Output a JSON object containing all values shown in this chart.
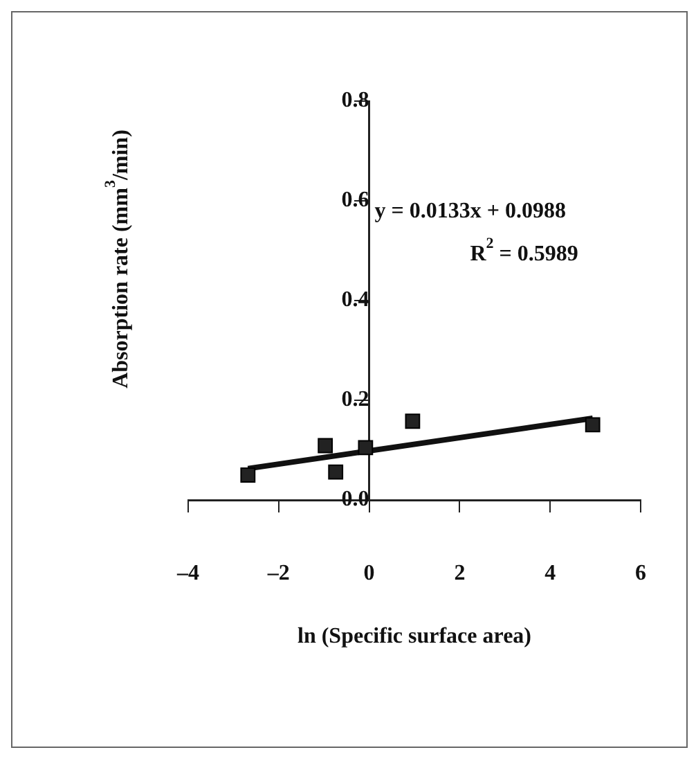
{
  "chart_data": {
    "type": "scatter",
    "xlabel": "ln (Specific surface area)",
    "ylabel": "Absorption rate (mm$^{3}$/min)",
    "xlim": [
      -4,
      6
    ],
    "xticks": [
      {
        "value": -4,
        "label": "–4"
      },
      {
        "value": -2,
        "label": "–2"
      },
      0,
      2,
      4,
      6
    ],
    "ylim": [
      0,
      0.8
    ],
    "yticks": [
      {
        "value": 0,
        "label": "0.0"
      },
      0.2,
      0.4,
      0.6,
      0.8
    ],
    "grid": false,
    "legend": false,
    "marker": "square",
    "series": [
      {
        "color": "#222222",
        "x": [
          -2.68,
          -0.97,
          -0.74,
          -0.08,
          0.96,
          4.94
        ],
        "values": [
          0.05,
          0.109,
          0.056,
          0.105,
          0.158,
          0.151
        ]
      },
      {
        "type": "line",
        "color": "#111111",
        "x": [
          -2.68,
          4.94
        ],
        "values": [
          0.063,
          0.164
        ],
        "marker": "none",
        "line_style": "solid"
      }
    ],
    "annotations": [
      "y = 0.0133x + 0.0988",
      "R$^{2}$ = 0.5989"
    ]
  }
}
